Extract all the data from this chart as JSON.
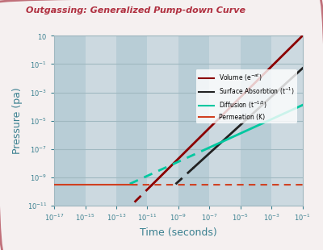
{
  "title": "Outgassing: Generalized Pump-down Curve",
  "xlabel": "Time (seconds)",
  "ylabel": "Pressure (pa)",
  "bg_color": "#dde8ec",
  "bg_color_light": "#ccd9e0",
  "bg_color_dark": "#b8cdd6",
  "border_color": "#c0707a",
  "title_color": "#b03040",
  "axis_label_color": "#3a8090",
  "tick_label_color": "#3a8090",
  "grid_color": "#a0b8c0",
  "legend_labels": [
    "Volume (e⁻ᵃt)",
    "Surface Absorbtion (t⁻¹)",
    "Diffusion (t⁻¹ᐟ²)",
    "Permeation (K)"
  ],
  "curve_colors": [
    "#8B0000",
    "#222222",
    "#00c8a0",
    "#d04020"
  ],
  "x_exp_min": -1,
  "x_exp_max": -17,
  "y_exp_min": -11,
  "y_exp_max": 1
}
